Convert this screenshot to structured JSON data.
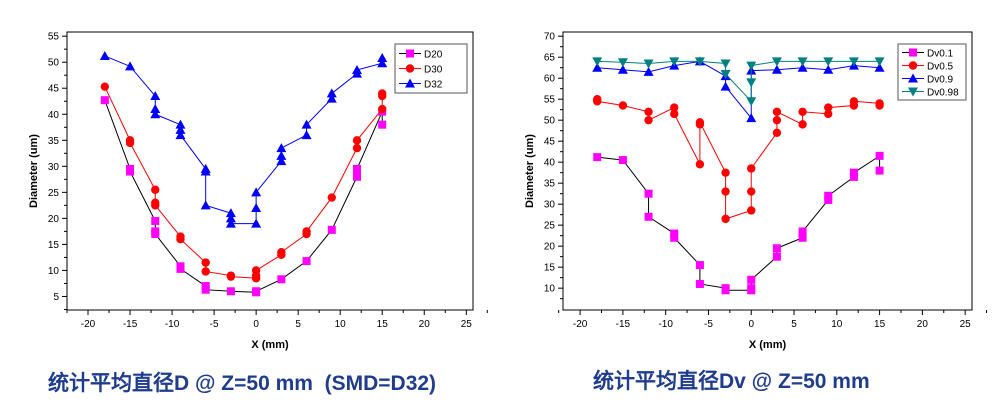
{
  "chart_data": [
    {
      "type": "scatter-line",
      "ylabel": "Diameter (um)",
      "xlabel": "X (mm)",
      "title": "统计平均直径D @ Z=50 mm  (SMD=D32)",
      "xlim": [
        -22.5,
        25.8
      ],
      "ylim": [
        2.4,
        55.8
      ],
      "xticks": [
        -20,
        -15,
        -10,
        -5,
        0,
        5,
        10,
        15,
        20,
        25
      ],
      "yticks": [
        5,
        10,
        15,
        20,
        25,
        30,
        35,
        40,
        45,
        50,
        55
      ],
      "legend_position": "top-right",
      "series": [
        {
          "name": "D20",
          "color": "#ff00ff",
          "line": "#000000",
          "marker": "square",
          "points": [
            [
              -18,
              42.7
            ],
            [
              -15,
              29.5
            ],
            [
              -15,
              29
            ],
            [
              -12,
              19.5
            ],
            [
              -12,
              17.5
            ],
            [
              -12,
              17
            ],
            [
              -9,
              10.8
            ],
            [
              -9,
              10.3
            ],
            [
              -6,
              7
            ],
            [
              -6,
              6.3
            ],
            [
              -3,
              6
            ],
            [
              0,
              5.8
            ],
            [
              0,
              6
            ],
            [
              3,
              8.3
            ],
            [
              6,
              11.8
            ],
            [
              9,
              17.8
            ],
            [
              12,
              28
            ],
            [
              12,
              29.5
            ],
            [
              15,
              40.5
            ],
            [
              15,
              38
            ]
          ]
        },
        {
          "name": "D30",
          "color": "#ff0000",
          "line": "#ff0000",
          "marker": "circle",
          "points": [
            [
              -18,
              45.3
            ],
            [
              -15,
              35
            ],
            [
              -15,
              34.5
            ],
            [
              -12,
              25.5
            ],
            [
              -12,
              23
            ],
            [
              -12,
              22.5
            ],
            [
              -9,
              16.5
            ],
            [
              -9,
              16
            ],
            [
              -6,
              11.5
            ],
            [
              -6,
              9.8
            ],
            [
              -3,
              9
            ],
            [
              -3,
              8.8
            ],
            [
              0,
              8.5
            ],
            [
              0,
              9
            ],
            [
              0,
              10
            ],
            [
              3,
              13
            ],
            [
              3,
              13.5
            ],
            [
              6,
              17
            ],
            [
              6,
              17.5
            ],
            [
              9,
              24
            ],
            [
              12,
              33.5
            ],
            [
              12,
              35
            ],
            [
              15,
              41
            ],
            [
              15,
              43.5
            ],
            [
              15,
              44
            ]
          ]
        },
        {
          "name": "D32",
          "color": "#0000ff",
          "line": "#0000ff",
          "marker": "triangle",
          "points": [
            [
              -18,
              51.2
            ],
            [
              -15,
              49.2
            ],
            [
              -12,
              43.5
            ],
            [
              -12,
              41
            ],
            [
              -12,
              40
            ],
            [
              -9,
              38
            ],
            [
              -9,
              37
            ],
            [
              -9,
              36
            ],
            [
              -6,
              29.5
            ],
            [
              -6,
              29
            ],
            [
              -6,
              22.5
            ],
            [
              -3,
              21
            ],
            [
              -3,
              20
            ],
            [
              -3,
              19
            ],
            [
              0,
              19
            ],
            [
              0,
              22
            ],
            [
              0,
              25
            ],
            [
              3,
              31
            ],
            [
              3,
              32
            ],
            [
              3,
              33.5
            ],
            [
              6,
              36
            ],
            [
              6,
              38
            ],
            [
              9,
              43
            ],
            [
              9,
              44
            ],
            [
              12,
              47.8
            ],
            [
              12,
              48.5
            ],
            [
              15,
              49.8
            ],
            [
              15,
              50.8
            ]
          ]
        }
      ]
    },
    {
      "type": "scatter-line",
      "ylabel": "Diameter (um)",
      "xlabel": "X (mm)",
      "title": "统计平均直径Dv @ Z=50 mm",
      "xlim": [
        -22,
        25.8
      ],
      "ylim": [
        4.8,
        71
      ],
      "xticks": [
        -20,
        -15,
        -10,
        -5,
        0,
        5,
        10,
        15,
        20,
        25
      ],
      "yticks": [
        10,
        15,
        20,
        25,
        30,
        35,
        40,
        45,
        50,
        55,
        60,
        65,
        70
      ],
      "legend_position": "top-right",
      "series": [
        {
          "name": "Dv0.1",
          "color": "#ff00ff",
          "line": "#000000",
          "marker": "square",
          "points": [
            [
              -18,
              41.2
            ],
            [
              -15,
              40.5
            ],
            [
              -12,
              32.5
            ],
            [
              -12,
              27
            ],
            [
              -9,
              23
            ],
            [
              -9,
              22
            ],
            [
              -6,
              15.5
            ],
            [
              -6,
              11
            ],
            [
              -3,
              10
            ],
            [
              -3,
              9.5
            ],
            [
              0,
              9.5
            ],
            [
              0,
              10
            ],
            [
              0,
              12
            ],
            [
              3,
              17.5
            ],
            [
              3,
              19.5
            ],
            [
              6,
              22
            ],
            [
              6,
              23.5
            ],
            [
              9,
              31
            ],
            [
              9,
              32
            ],
            [
              12,
              36.5
            ],
            [
              12,
              37.5
            ],
            [
              15,
              41.5
            ],
            [
              15,
              38
            ]
          ]
        },
        {
          "name": "Dv0.5",
          "color": "#ff0000",
          "line": "#ff0000",
          "marker": "circle",
          "points": [
            [
              -18,
              55
            ],
            [
              -18,
              54.5
            ],
            [
              -15,
              53.5
            ],
            [
              -12,
              52
            ],
            [
              -12,
              50
            ],
            [
              -9,
              53
            ],
            [
              -9,
              51.5
            ],
            [
              -6,
              39.5
            ],
            [
              -6,
              49
            ],
            [
              -6,
              49.5
            ],
            [
              -3,
              37.5
            ],
            [
              -3,
              33
            ],
            [
              -3,
              26.5
            ],
            [
              0,
              28.5
            ],
            [
              0,
              33
            ],
            [
              0,
              38.5
            ],
            [
              3,
              47
            ],
            [
              3,
              50
            ],
            [
              3,
              52
            ],
            [
              6,
              49
            ],
            [
              6,
              52
            ],
            [
              9,
              51.5
            ],
            [
              9,
              53
            ],
            [
              12,
              53.5
            ],
            [
              12,
              54.5
            ],
            [
              15,
              54
            ],
            [
              15,
              53.5
            ]
          ]
        },
        {
          "name": "Dv0.9",
          "color": "#0000ff",
          "line": "#0000ff",
          "marker": "triangle",
          "points": [
            [
              -18,
              62.5
            ],
            [
              -15,
              62
            ],
            [
              -12,
              61.5
            ],
            [
              -9,
              63
            ],
            [
              -6,
              64
            ],
            [
              -3,
              60.5
            ],
            [
              -3,
              58
            ],
            [
              0,
              50.5
            ],
            [
              0,
              61.8
            ],
            [
              3,
              62
            ],
            [
              6,
              62.5
            ],
            [
              9,
              62
            ],
            [
              12,
              63
            ],
            [
              15,
              62.5
            ]
          ]
        },
        {
          "name": "Dv0.98",
          "color": "#008080",
          "line": "#008080",
          "marker": "triangle-down",
          "points": [
            [
              -18,
              64
            ],
            [
              -15,
              63.8
            ],
            [
              -12,
              63.5
            ],
            [
              -9,
              64
            ],
            [
              -6,
              64
            ],
            [
              -3,
              63.5
            ],
            [
              -3,
              61
            ],
            [
              0,
              54.5
            ],
            [
              0,
              59
            ],
            [
              0,
              63
            ],
            [
              3,
              64
            ],
            [
              6,
              64
            ],
            [
              9,
              64
            ],
            [
              12,
              64
            ],
            [
              15,
              64
            ]
          ]
        }
      ]
    }
  ]
}
